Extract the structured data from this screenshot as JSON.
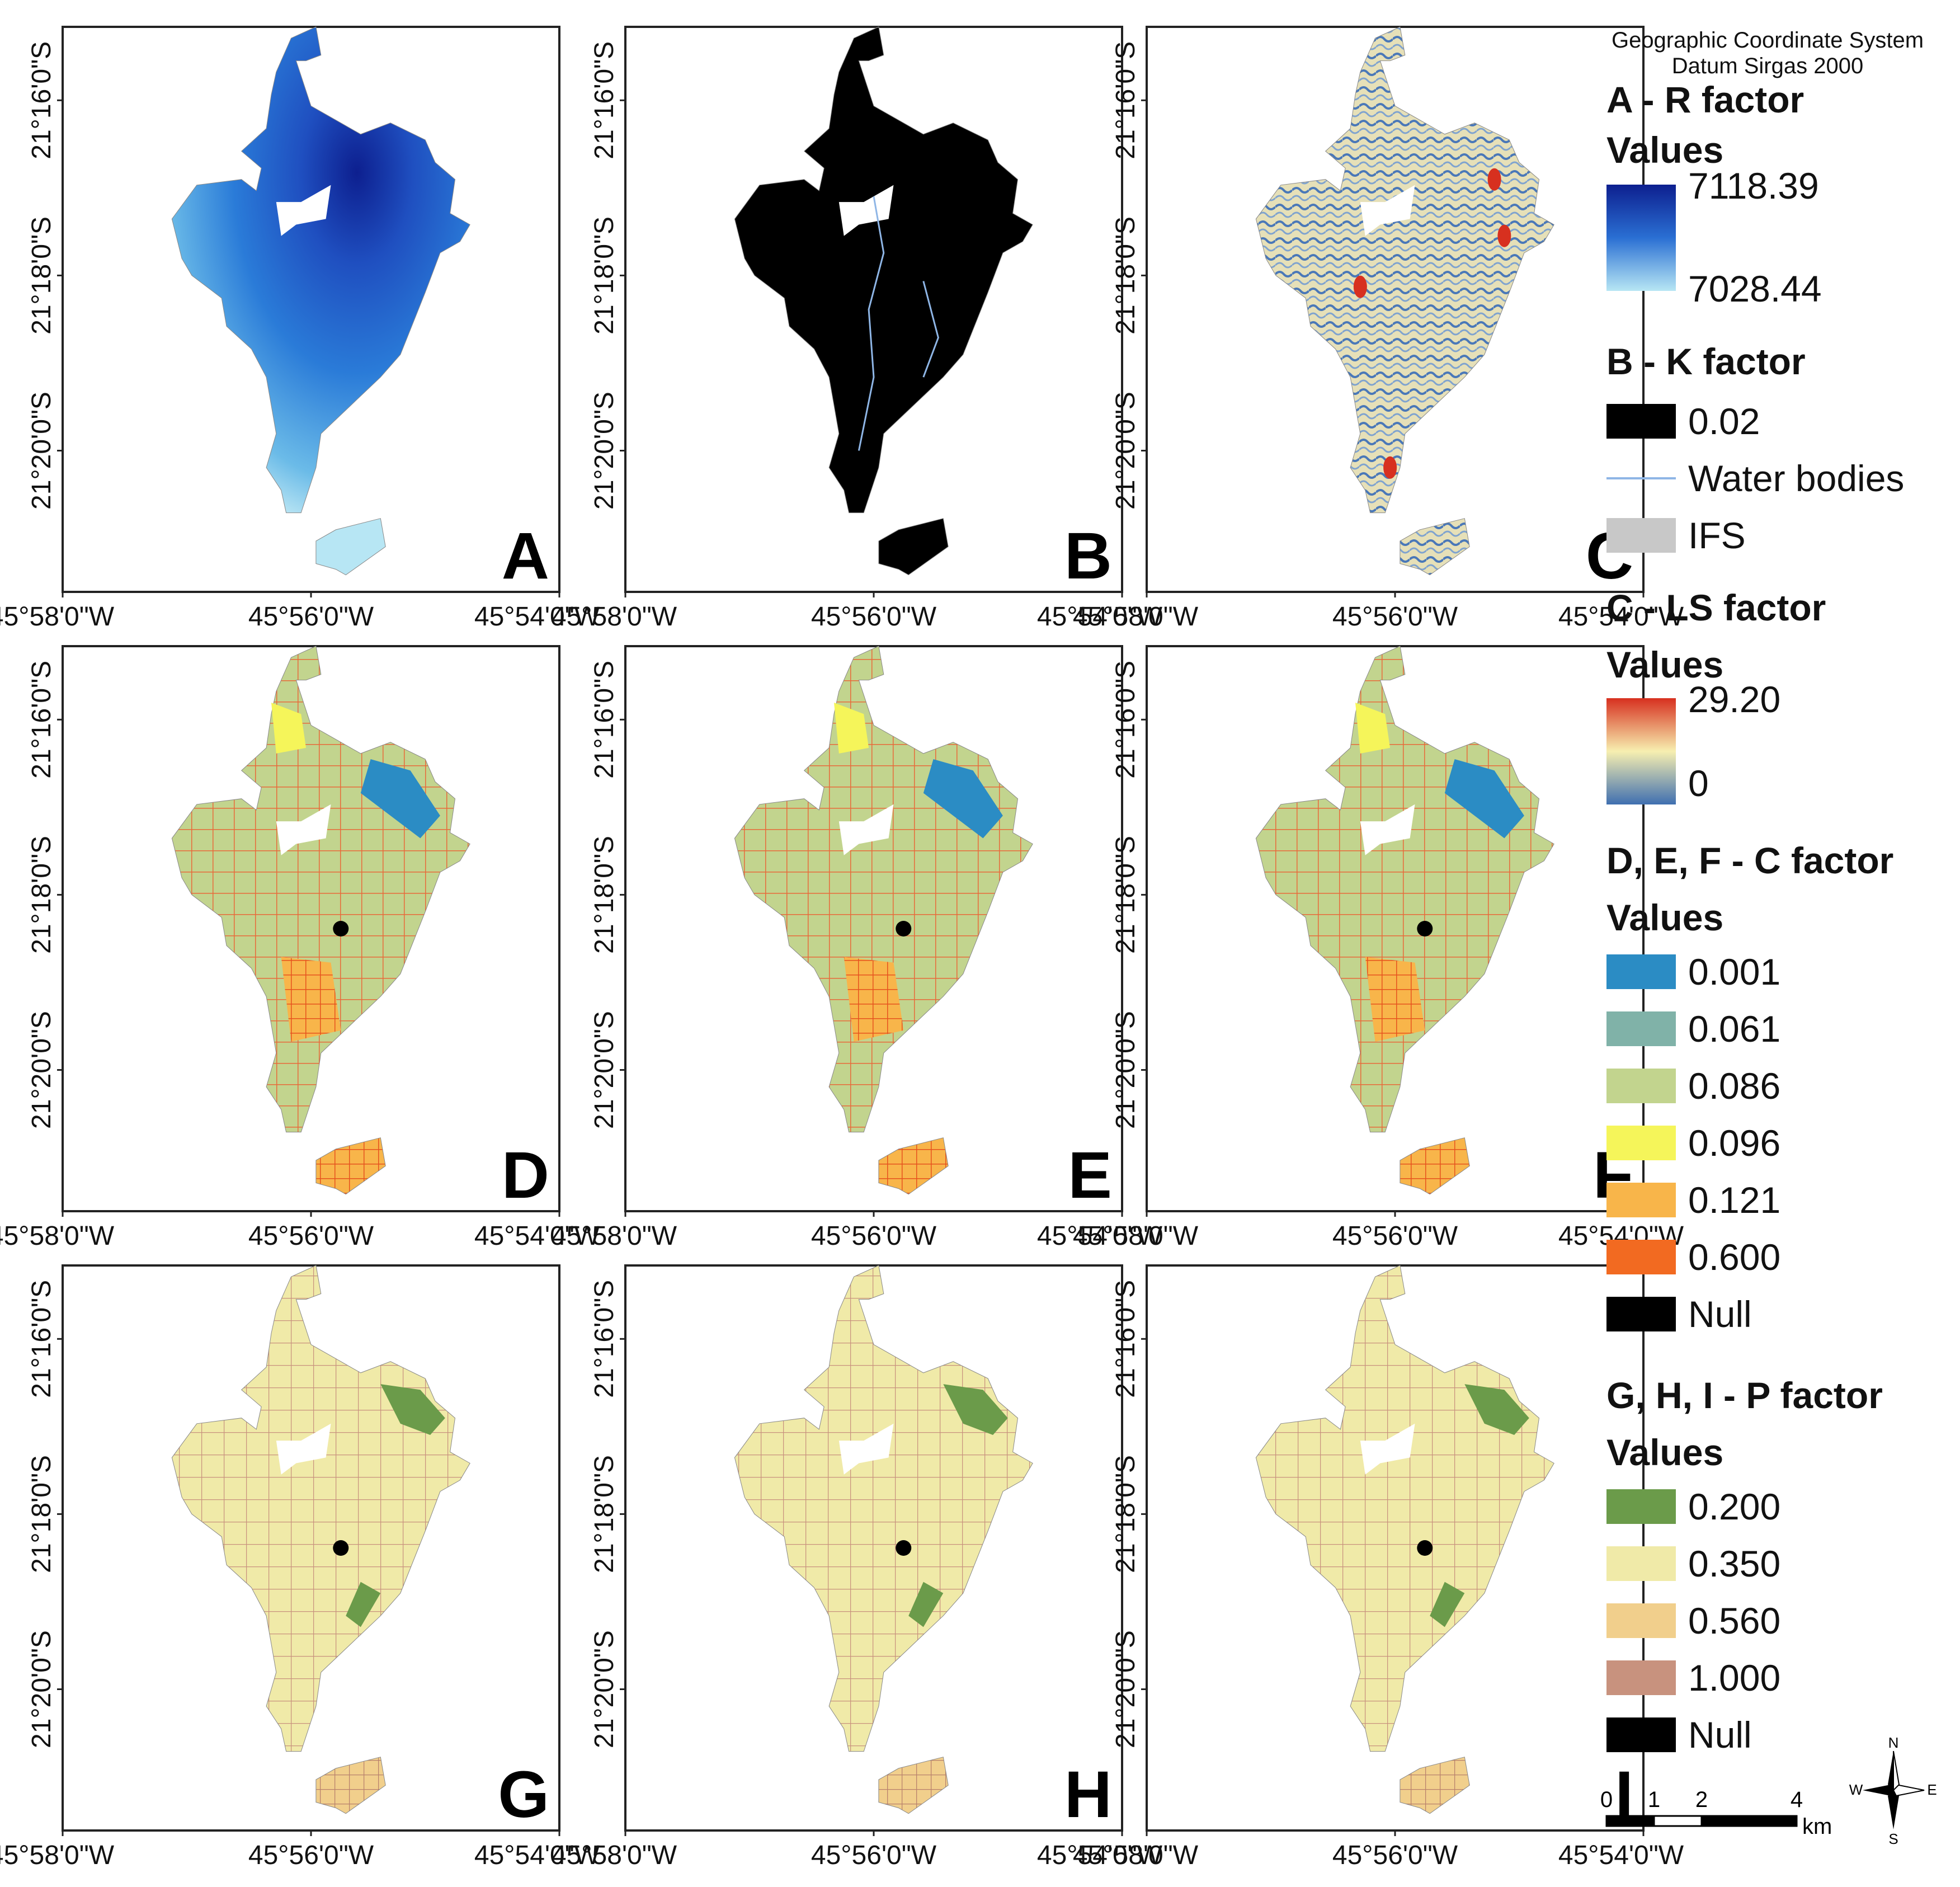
{
  "header": {
    "line1": "Geographic Coordinate System",
    "line2": "Datum Sirgas 2000"
  },
  "axes": {
    "lat_labels": [
      "21°16'0\"S",
      "21°18'0\"S",
      "21°20'0\"S"
    ],
    "lon_labels": [
      "45°58'0\"W",
      "45°56'0\"W",
      "45°54'0\"W"
    ]
  },
  "panels": [
    {
      "letter": "A",
      "style": "rfactor"
    },
    {
      "letter": "B",
      "style": "kfactor"
    },
    {
      "letter": "C",
      "style": "lsfactor"
    },
    {
      "letter": "D",
      "style": "cfactor"
    },
    {
      "letter": "E",
      "style": "cfactor"
    },
    {
      "letter": "F",
      "style": "cfactor"
    },
    {
      "letter": "G",
      "style": "pfactor"
    },
    {
      "letter": "H",
      "style": "pfactor"
    },
    {
      "letter": "I",
      "style": "pfactor"
    }
  ],
  "legend": {
    "r": {
      "title": "A - R factor",
      "sub": "Values",
      "max": "7118.39",
      "min": "7028.44",
      "colors": [
        "#0d1f8f",
        "#2a6fd3",
        "#b7e6f4"
      ]
    },
    "k": {
      "title": "B - K factor",
      "items": [
        {
          "label": "0.02",
          "color": "#000000",
          "kind": "box"
        },
        {
          "label": "Water bodies",
          "color": "#8fb6e6",
          "kind": "line"
        },
        {
          "label": "IFS",
          "color": "#c8c8c8",
          "kind": "box"
        }
      ]
    },
    "ls": {
      "title": "C - LS factor",
      "sub": "Values",
      "max": "29.20",
      "min": "0",
      "colors": [
        "#d7301f",
        "#f7efb0",
        "#3f6fb0"
      ]
    },
    "c": {
      "title": "D, E, F - C factor",
      "sub": "Values",
      "items": [
        {
          "label": "0.001",
          "color": "#2b8cc4"
        },
        {
          "label": "0.061",
          "color": "#80b2a8"
        },
        {
          "label": "0.086",
          "color": "#c2d48e"
        },
        {
          "label": "0.096",
          "color": "#f5f55a"
        },
        {
          "label": "0.121",
          "color": "#f8b54a"
        },
        {
          "label": "0.600",
          "color": "#f26a21"
        },
        {
          "label": "Null",
          "color": "#000000"
        }
      ]
    },
    "p": {
      "title": "G, H, I - P factor",
      "sub": "Values",
      "items": [
        {
          "label": "0.200",
          "color": "#6b9b4a"
        },
        {
          "label": "0.350",
          "color": "#f0eaa8"
        },
        {
          "label": "0.560",
          "color": "#f1cf8c"
        },
        {
          "label": "1.000",
          "color": "#c8927e"
        },
        {
          "label": "Null",
          "color": "#000000"
        }
      ]
    }
  },
  "scalebar": {
    "ticks": [
      "0",
      "1",
      "2",
      "4"
    ],
    "unit": "km"
  },
  "north_arrow": {
    "n": "N",
    "s": "S",
    "e": "E",
    "w": "W",
    "icon": "compass-rose-icon"
  }
}
